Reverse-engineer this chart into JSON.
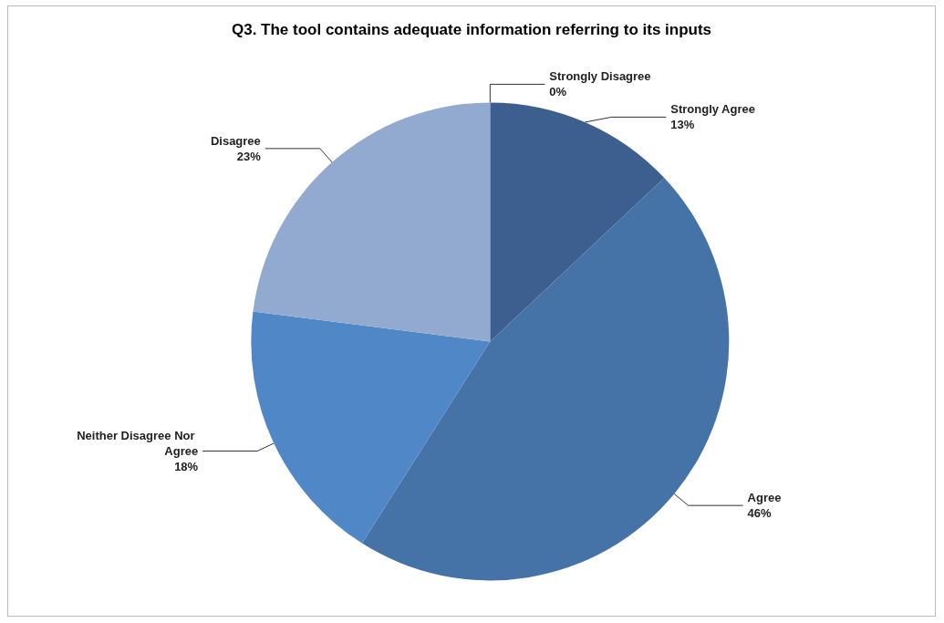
{
  "chart_data": {
    "type": "pie",
    "title": "Q3. The tool contains adequate information referring to its inputs",
    "categories": [
      "Strongly Agree",
      "Agree",
      "Neither Disagree Nor Agree",
      "Disagree",
      "Strongly Disagree"
    ],
    "values": [
      13,
      46,
      18,
      23,
      0
    ],
    "value_labels": [
      "13%",
      "46%",
      "18%",
      "23%",
      "0%"
    ],
    "colors": [
      "#3d5f8f",
      "#4572a7",
      "#5087c6",
      "#92a9d0",
      "#b9c8e2"
    ],
    "legend": false
  }
}
